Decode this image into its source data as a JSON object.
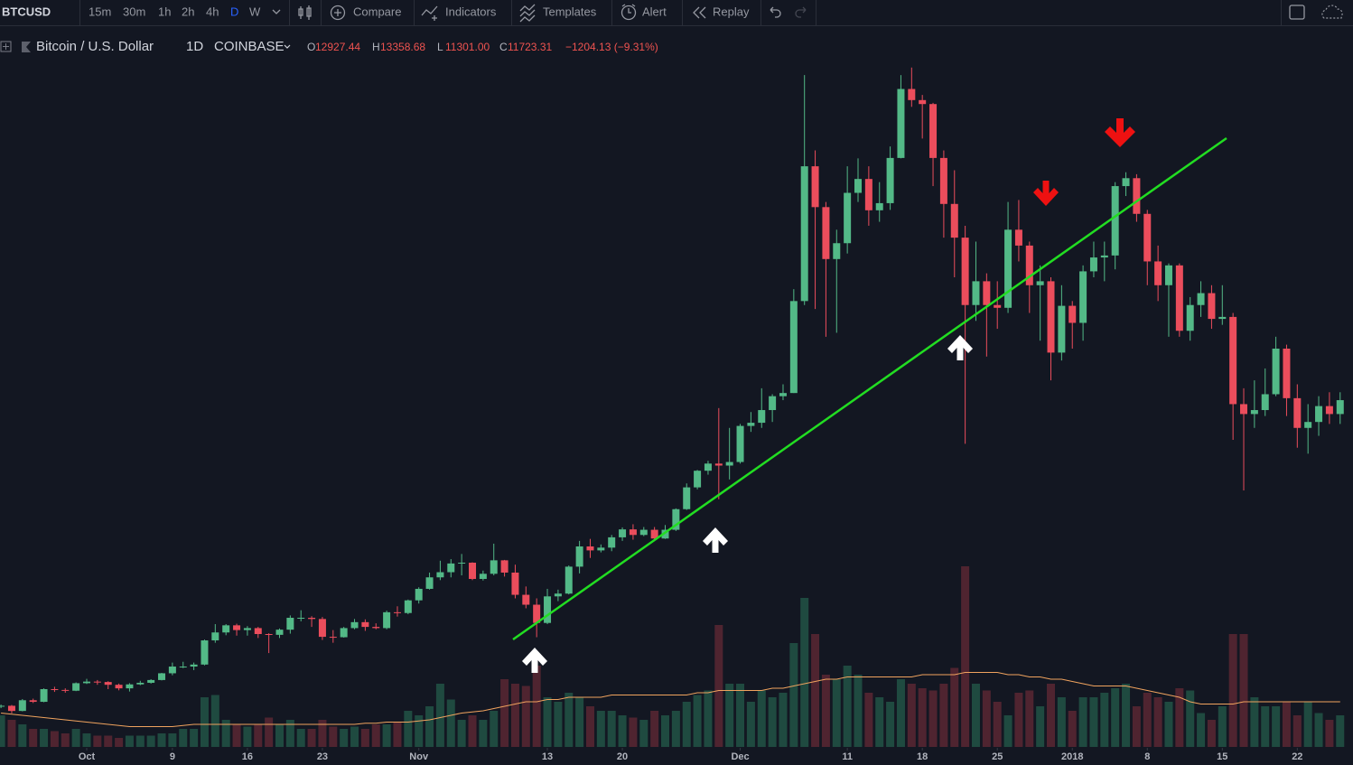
{
  "toolbar": {
    "symbol": "BTCUSD",
    "intervals": [
      "15m",
      "30m",
      "1h",
      "2h",
      "4h",
      "D",
      "W"
    ],
    "buttons": [
      "Compare",
      "Indicators",
      "Templates",
      "Alert",
      "Replay"
    ]
  },
  "legend": {
    "name": "Bitcoin / U.S. Dollar",
    "interval": "1D",
    "exchange": "COINBASE",
    "ohlc": [
      {
        "label": "O",
        "value": "12927.44"
      },
      {
        "label": "H",
        "value": "13358.68"
      },
      {
        "label": "L",
        "value": "11301.00"
      },
      {
        "label": "C",
        "value": "11723.31"
      }
    ],
    "change": "−1204.13 (−9.31%)"
  },
  "chart_data": {
    "type": "candlestick",
    "up_color": "#53b987",
    "down_color": "#eb4d5c",
    "volume_up_color": "#1f4a40",
    "volume_down_color": "#4f2430",
    "volume_ma_color": "#f0a35e",
    "xlim": [
      -0.093,
      126.2
    ],
    "ylim": [
      2000,
      20000
    ],
    "volume_ylim": [
      0,
      100
    ],
    "xticks": [
      {
        "value": 8,
        "label": "Oct"
      },
      {
        "value": 16,
        "label": "9"
      },
      {
        "value": 23,
        "label": "16"
      },
      {
        "value": 30,
        "label": "23"
      },
      {
        "value": 39,
        "label": "Nov"
      },
      {
        "value": 51,
        "label": "13"
      },
      {
        "value": 58,
        "label": "20"
      },
      {
        "value": 69,
        "label": "Dec"
      },
      {
        "value": 79,
        "label": "11"
      },
      {
        "value": 86,
        "label": "18"
      },
      {
        "value": 93,
        "label": "25"
      },
      {
        "value": 100,
        "label": "2018"
      },
      {
        "value": 107,
        "label": "8"
      },
      {
        "value": 114,
        "label": "15"
      },
      {
        "value": 121,
        "label": "22"
      }
    ],
    "candles": [
      [
        3780,
        3820,
        3730,
        3790
      ],
      [
        3790,
        3810,
        3600,
        3660
      ],
      [
        3660,
        3960,
        3650,
        3930
      ],
      [
        3930,
        3970,
        3860,
        3890
      ],
      [
        3890,
        4230,
        3880,
        4210
      ],
      [
        4210,
        4270,
        4140,
        4190
      ],
      [
        4190,
        4230,
        4120,
        4170
      ],
      [
        4170,
        4380,
        4160,
        4360
      ],
      [
        4360,
        4470,
        4340,
        4400
      ],
      [
        4400,
        4440,
        4320,
        4390
      ],
      [
        4390,
        4410,
        4210,
        4320
      ],
      [
        4320,
        4350,
        4180,
        4230
      ],
      [
        4230,
        4360,
        4150,
        4330
      ],
      [
        4330,
        4420,
        4310,
        4370
      ],
      [
        4370,
        4460,
        4350,
        4440
      ],
      [
        4440,
        4620,
        4430,
        4610
      ],
      [
        4610,
        4880,
        4560,
        4780
      ],
      [
        4780,
        4900,
        4740,
        4780
      ],
      [
        4780,
        4880,
        4690,
        4830
      ],
      [
        4830,
        5460,
        4810,
        5440
      ],
      [
        5440,
        5850,
        5380,
        5640
      ],
      [
        5640,
        5850,
        5570,
        5820
      ],
      [
        5820,
        5860,
        5560,
        5700
      ],
      [
        5700,
        5800,
        5560,
        5750
      ],
      [
        5750,
        5780,
        5500,
        5600
      ],
      [
        5600,
        5620,
        5120,
        5580
      ],
      [
        5580,
        5740,
        5500,
        5710
      ],
      [
        5710,
        6070,
        5610,
        6010
      ],
      [
        6010,
        6200,
        5920,
        6010
      ],
      [
        6010,
        6050,
        5780,
        5980
      ],
      [
        5980,
        6030,
        5450,
        5530
      ],
      [
        5530,
        5700,
        5380,
        5520
      ],
      [
        5520,
        5780,
        5510,
        5750
      ],
      [
        5750,
        5980,
        5720,
        5900
      ],
      [
        5900,
        5970,
        5680,
        5780
      ],
      [
        5780,
        5870,
        5720,
        5750
      ],
      [
        5750,
        6190,
        5720,
        6150
      ],
      [
        6150,
        6300,
        6040,
        6130
      ],
      [
        6130,
        6470,
        6100,
        6450
      ],
      [
        6450,
        6780,
        6370,
        6740
      ],
      [
        6740,
        7150,
        6720,
        7030
      ],
      [
        7030,
        7450,
        6960,
        7160
      ],
      [
        7160,
        7490,
        7030,
        7380
      ],
      [
        7380,
        7620,
        7080,
        7400
      ],
      [
        7400,
        7410,
        6960,
        6990
      ],
      [
        6990,
        7200,
        6950,
        7120
      ],
      [
        7120,
        7880,
        7080,
        7460
      ],
      [
        7460,
        7470,
        7050,
        7150
      ],
      [
        7150,
        7350,
        6500,
        6590
      ],
      [
        6590,
        6800,
        6250,
        6340
      ],
      [
        6340,
        6500,
        5520,
        5880
      ],
      [
        5880,
        6740,
        5850,
        6550
      ],
      [
        6550,
        6720,
        6430,
        6620
      ],
      [
        6620,
        7330,
        6600,
        7300
      ],
      [
        7300,
        7950,
        7130,
        7810
      ],
      [
        7810,
        8000,
        7520,
        7710
      ],
      [
        7710,
        7860,
        7660,
        7780
      ],
      [
        7780,
        8100,
        7690,
        8040
      ],
      [
        8040,
        8290,
        7950,
        8240
      ],
      [
        8240,
        8370,
        7980,
        8100
      ],
      [
        8100,
        8300,
        8070,
        8230
      ],
      [
        8230,
        8300,
        7990,
        8010
      ],
      [
        8010,
        8350,
        8000,
        8230
      ],
      [
        8230,
        8770,
        8200,
        8750
      ],
      [
        8750,
        9400,
        8730,
        9300
      ],
      [
        9300,
        9740,
        9250,
        9720
      ],
      [
        9720,
        9970,
        9620,
        9900
      ],
      [
        9900,
        11300,
        9000,
        9850
      ],
      [
        9850,
        10800,
        9500,
        9940
      ],
      [
        9940,
        10900,
        9900,
        10850
      ],
      [
        10850,
        11200,
        10700,
        10930
      ],
      [
        10930,
        11800,
        10800,
        11250
      ],
      [
        11250,
        11650,
        10950,
        11600
      ],
      [
        11600,
        11900,
        11500,
        11680
      ],
      [
        11680,
        14300,
        11680,
        14000
      ],
      [
        14000,
        19700,
        13900,
        17400
      ],
      [
        17400,
        17800,
        13800,
        16370
      ],
      [
        16370,
        16500,
        13100,
        15060
      ],
      [
        15060,
        15800,
        13200,
        15460
      ],
      [
        15460,
        17400,
        15200,
        16730
      ],
      [
        16730,
        17600,
        16500,
        17080
      ],
      [
        17080,
        17400,
        15900,
        16290
      ],
      [
        16290,
        17000,
        16000,
        16470
      ],
      [
        16470,
        17900,
        16300,
        17610
      ],
      [
        17610,
        19700,
        17600,
        19350
      ],
      [
        19350,
        19891,
        18900,
        19070
      ],
      [
        19070,
        19200,
        18100,
        18970
      ],
      [
        18970,
        19000,
        16900,
        17610
      ],
      [
        17610,
        17800,
        15600,
        16450
      ],
      [
        16450,
        17300,
        14600,
        15600
      ],
      [
        15600,
        15900,
        10400,
        13900
      ],
      [
        13900,
        15500,
        13500,
        14500
      ],
      [
        14500,
        14700,
        12600,
        13900
      ],
      [
        13900,
        14500,
        13300,
        13830
      ],
      [
        13830,
        16500,
        13700,
        15800
      ],
      [
        15800,
        16550,
        15000,
        15400
      ],
      [
        15400,
        15500,
        13700,
        14400
      ],
      [
        14400,
        14900,
        13000,
        14500
      ],
      [
        14500,
        14600,
        12000,
        12700
      ],
      [
        12700,
        14400,
        12500,
        13880
      ],
      [
        13880,
        14000,
        12800,
        13450
      ],
      [
        13450,
        14900,
        13000,
        14750
      ],
      [
        14750,
        15500,
        14600,
        15100
      ],
      [
        15100,
        15500,
        14500,
        15150
      ],
      [
        15150,
        17000,
        14800,
        16900
      ],
      [
        16900,
        17250,
        16650,
        17100
      ],
      [
        17100,
        17200,
        16000,
        16200
      ],
      [
        16200,
        16300,
        14400,
        15000
      ],
      [
        15000,
        15400,
        14000,
        14400
      ],
      [
        14400,
        14950,
        13100,
        14900
      ],
      [
        14900,
        14950,
        13100,
        13250
      ],
      [
        13250,
        14100,
        13000,
        13900
      ],
      [
        13900,
        14500,
        13600,
        14200
      ],
      [
        14200,
        14400,
        13300,
        13550
      ],
      [
        13550,
        14400,
        13400,
        13600
      ],
      [
        13600,
        13700,
        10500,
        11400
      ],
      [
        11400,
        11800,
        9222,
        11150
      ],
      [
        11150,
        12000,
        10800,
        11250
      ],
      [
        11250,
        12300,
        11100,
        11650
      ],
      [
        11650,
        13100,
        11600,
        12800
      ],
      [
        12800,
        12900,
        11100,
        11550
      ],
      [
        11550,
        11900,
        10300,
        10800
      ],
      [
        10800,
        11400,
        10150,
        10950
      ],
      [
        10950,
        11600,
        10600,
        11350
      ],
      [
        11350,
        11700,
        10900,
        11150
      ],
      [
        11150,
        11700,
        10900,
        11500
      ]
    ],
    "volumes": [
      14,
      12,
      10,
      8,
      8,
      7,
      6,
      8,
      6,
      5,
      5,
      4,
      5,
      5,
      5,
      6,
      6,
      8,
      8,
      22,
      23,
      12,
      10,
      9,
      10,
      13,
      10,
      12,
      8,
      8,
      12,
      9,
      8,
      9,
      8,
      10,
      10,
      11,
      16,
      14,
      18,
      28,
      21,
      12,
      14,
      12,
      16,
      30,
      28,
      27,
      36,
      22,
      20,
      24,
      22,
      18,
      16,
      16,
      14,
      13,
      12,
      16,
      14,
      16,
      20,
      23,
      25,
      54,
      28,
      28,
      20,
      25,
      22,
      24,
      46,
      66,
      50,
      32,
      30,
      36,
      32,
      24,
      22,
      20,
      30,
      28,
      26,
      25,
      28,
      35,
      80,
      28,
      25,
      20,
      14,
      24,
      25,
      18,
      28,
      22,
      16,
      22,
      22,
      24,
      26,
      28,
      18,
      24,
      22,
      20,
      26,
      25,
      15,
      12,
      18,
      50,
      50,
      22,
      18,
      18,
      20,
      14,
      20,
      15,
      12,
      14
    ],
    "volume_ma": [
      15,
      14.5,
      14,
      13.5,
      13,
      12.5,
      12,
      11.5,
      11,
      10.5,
      10,
      9.5,
      9,
      9,
      9,
      9,
      9,
      9.5,
      10,
      10,
      10,
      10,
      10,
      10,
      10,
      10,
      10,
      10,
      10,
      10,
      10,
      10,
      10,
      10,
      10.5,
      10.5,
      11,
      11,
      11,
      11.5,
      12,
      13,
      14,
      15,
      15.5,
      16,
      17,
      18,
      19,
      20,
      20,
      21,
      21,
      22,
      22,
      22,
      22,
      23,
      23,
      23,
      23,
      23,
      23,
      23,
      23,
      24,
      24,
      25,
      25,
      25,
      25,
      25,
      26,
      26,
      27,
      28,
      29,
      30,
      30,
      31,
      31,
      31,
      31,
      31,
      31,
      31,
      32,
      32,
      32,
      32,
      33,
      33,
      33,
      33,
      32,
      32,
      31,
      31,
      30,
      30,
      29,
      28,
      27,
      27,
      27,
      27,
      26,
      25,
      24,
      23,
      22,
      20,
      19,
      19,
      19,
      19,
      20,
      20,
      20,
      20,
      20,
      20,
      20,
      20,
      20,
      20
    ]
  }
}
